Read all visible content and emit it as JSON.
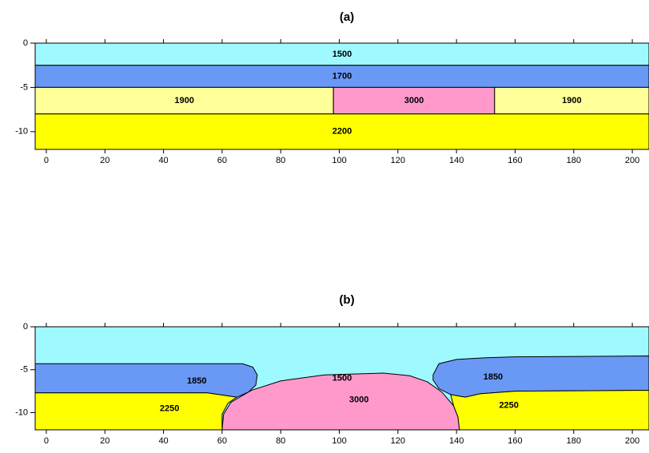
{
  "chart_data": [
    {
      "type": "layers",
      "title": "(a)",
      "xlim": [
        -3.8,
        205.7
      ],
      "ylim": [
        -12,
        0
      ],
      "xticks": [
        0,
        20,
        40,
        60,
        80,
        100,
        120,
        140,
        160,
        180,
        200
      ],
      "yticks": [
        0,
        -5,
        -10
      ],
      "regions": [
        {
          "value": 1500,
          "color": "#9ffaff",
          "x": [
            -3.8,
            205.7,
            205.7,
            -3.8
          ],
          "y": [
            0,
            0,
            -2.5,
            -2.5
          ]
        },
        {
          "value": 1700,
          "color": "#6a98f5",
          "x": [
            -3.8,
            205.7,
            205.7,
            -3.8
          ],
          "y": [
            -2.5,
            -2.5,
            -5,
            -5
          ]
        },
        {
          "value": 1900,
          "color": "#ffff99",
          "x": [
            -3.8,
            98,
            98,
            -3.8
          ],
          "y": [
            -5,
            -5,
            -8,
            -8
          ]
        },
        {
          "value": 3000,
          "color": "#ff99cc",
          "x": [
            98,
            153,
            153,
            98
          ],
          "y": [
            -5,
            -5,
            -8,
            -8
          ]
        },
        {
          "value": 1900,
          "color": "#ffff99",
          "x": [
            153,
            205.7,
            205.7,
            153
          ],
          "y": [
            -5,
            -5,
            -8,
            -8
          ]
        },
        {
          "value": 2200,
          "color": "#ffff00",
          "x": [
            -3.8,
            205.7,
            205.7,
            -3.8
          ],
          "y": [
            -8,
            -8,
            -12,
            -12
          ]
        }
      ]
    },
    {
      "type": "layers",
      "title": "(b)",
      "xlim": [
        -3.8,
        205.7
      ],
      "ylim": [
        -12,
        0
      ],
      "xticks": [
        0,
        20,
        40,
        60,
        80,
        100,
        120,
        140,
        160,
        180,
        200
      ],
      "yticks": [
        0,
        -5,
        -10
      ],
      "regions": [
        {
          "value": 1500,
          "color": "#9ffaff",
          "x": [
            -3.8,
            205.7,
            205.7,
            -3.8
          ],
          "y": [
            0,
            0,
            -12,
            -12
          ]
        },
        {
          "value": 1850,
          "color": "#6a98f5",
          "x": [
            -3.8,
            67,
            70.5,
            72,
            71.5,
            69,
            65,
            55,
            -3.8
          ],
          "y": [
            -4.3,
            -4.3,
            -4.7,
            -5.6,
            -6.8,
            -7.6,
            -8.2,
            -7.7,
            -7.7
          ]
        },
        {
          "value": 2250,
          "color": "#ffff00",
          "x": [
            -3.8,
            55,
            65,
            62,
            60,
            60,
            -3.8
          ],
          "y": [
            -7.7,
            -7.7,
            -8.2,
            -8.9,
            -10.2,
            -12,
            -12
          ]
        },
        {
          "value": 3000,
          "color": "#ff99cc",
          "x": [
            60,
            60.5,
            63,
            70,
            80,
            95,
            115,
            124,
            130,
            135,
            139,
            140.5,
            141,
            141
          ],
          "y": [
            -12,
            -10.2,
            -8.8,
            -7.4,
            -6.3,
            -5.6,
            -5.4,
            -5.7,
            -6.4,
            -7.6,
            -9.2,
            -10.5,
            -12,
            -12
          ]
        },
        {
          "value": 1850,
          "color": "#6a98f5",
          "x": [
            132,
            134,
            140,
            150,
            160,
            205.7,
            205.7,
            160,
            148,
            143,
            138,
            134,
            132
          ],
          "y": [
            -5.6,
            -4.3,
            -3.8,
            -3.6,
            -3.5,
            -3.4,
            -7.4,
            -7.5,
            -7.8,
            -8.2,
            -7.9,
            -7.2,
            -6.2
          ]
        },
        {
          "value": 2250,
          "color": "#ffff00",
          "x": [
            141,
            140.5,
            139,
            138,
            143,
            148,
            160,
            205.7,
            205.7
          ],
          "y": [
            -12,
            -10.5,
            -9.2,
            -7.9,
            -8.2,
            -7.8,
            -7.5,
            -7.4,
            -12
          ]
        }
      ]
    }
  ]
}
